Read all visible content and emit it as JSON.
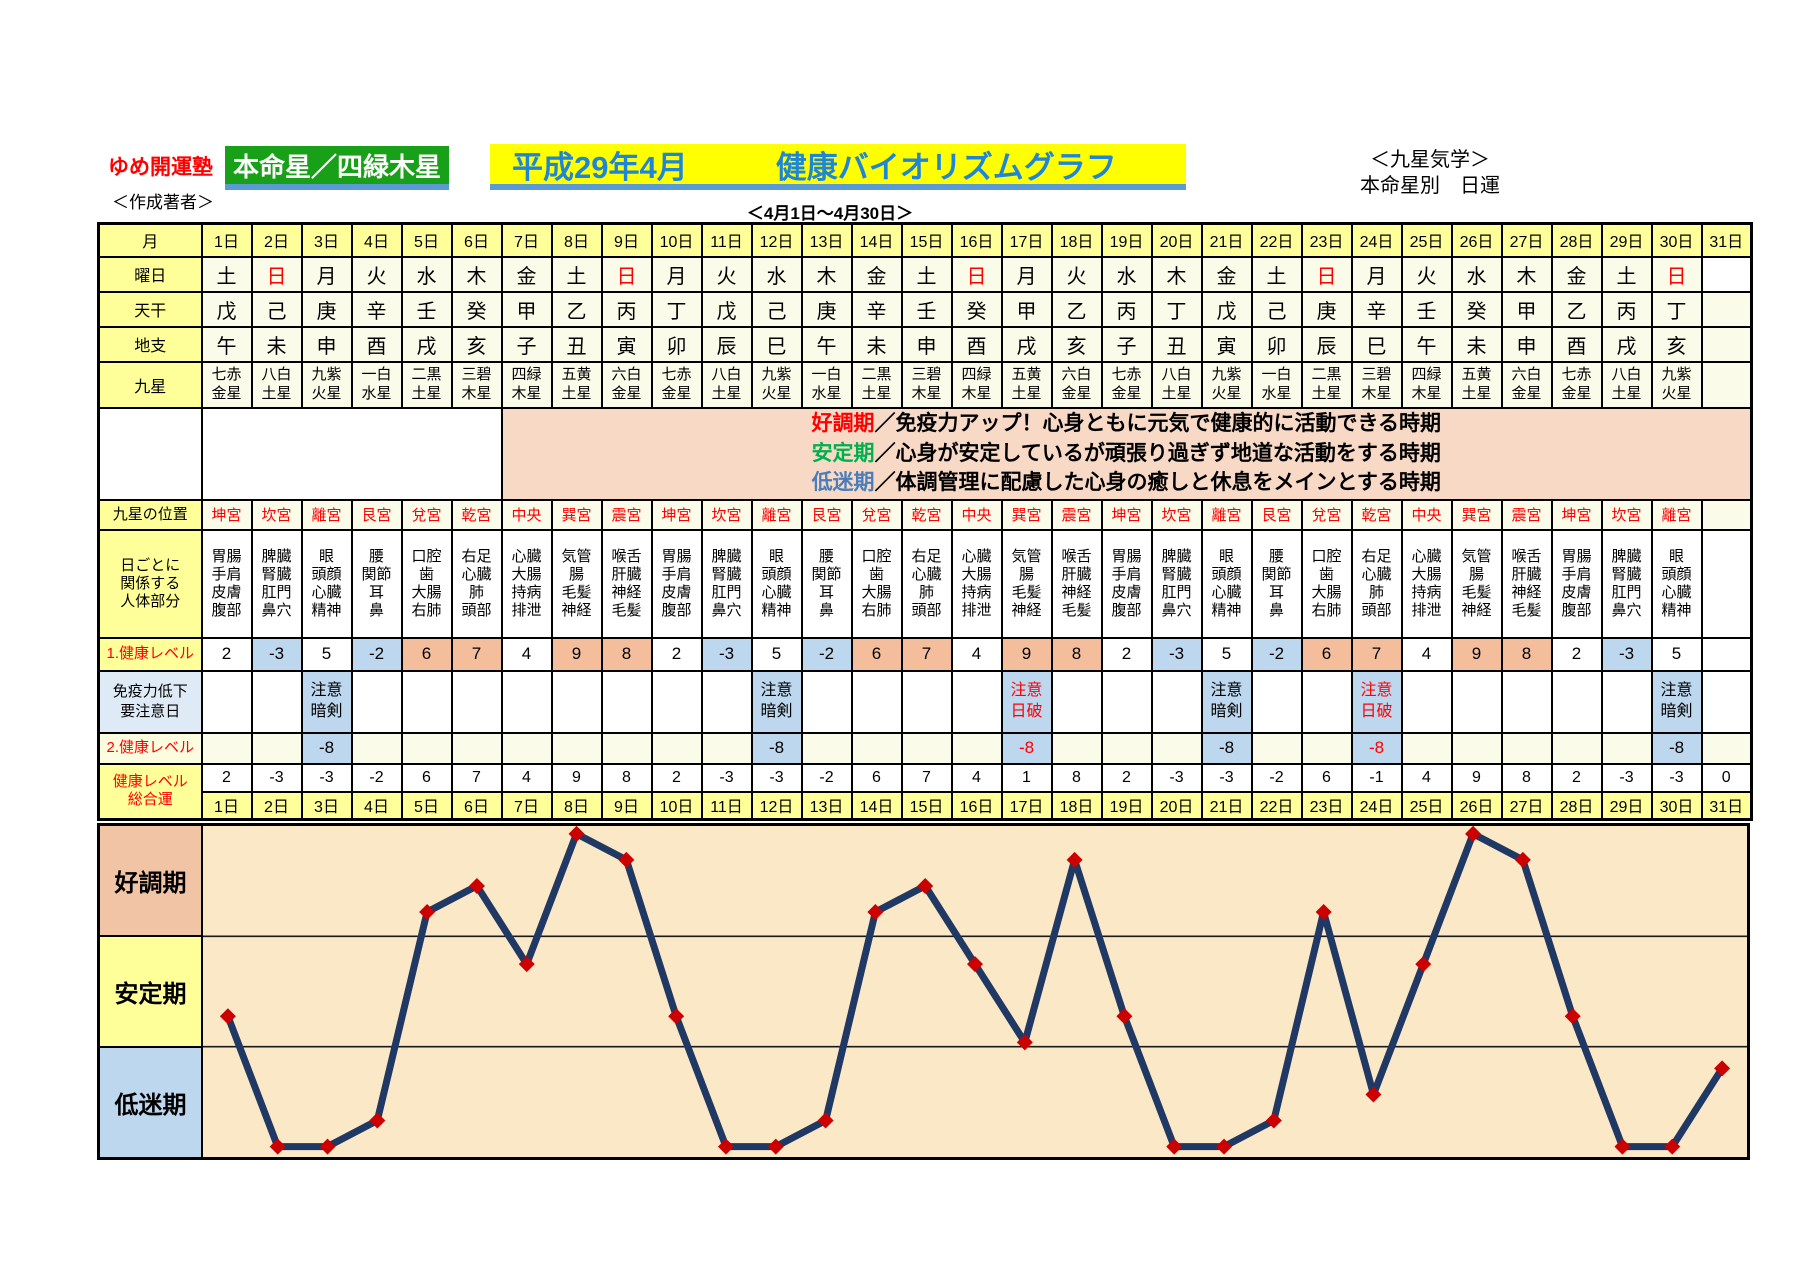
{
  "header": {
    "brand": "ゆめ開運塾",
    "author_label": "＜作成著者＞",
    "honmei": "本命星／四緑木星",
    "title_date": "平成29年4月",
    "title_main": "健康バイオリズムグラフ",
    "school_note": "＜九星気学＞",
    "fortune_note": "本命星別　日運",
    "period": "＜4月1日～4月30日＞"
  },
  "colors": {
    "title_text": "#1E86D8",
    "honmei_bg": "#18A018",
    "underline_blue": "#5B9BD5",
    "header_yellow": "#FFFF99",
    "cell_ivory": "#FBFBE9",
    "caution_blue": "#BDD7EE",
    "good_salmon": "#F4BE9D",
    "legend_pink": "#F8D9C6",
    "plot_bg": "#FBE8C7",
    "alert_red": "#FF0000"
  },
  "table": {
    "row_labels": {
      "month": "月",
      "weekday": "曜日",
      "tenkan": "天干",
      "chishi": "地支",
      "kyusei": "九星",
      "kyusei_position": "九星の位置",
      "body_parts": "日ごとに\n関係する\n人体部分",
      "level1": "1.健康レベル",
      "immune": "免疫力低下\n要注意日",
      "level2": "2.健康レベル",
      "total": "健康レベル\n総合運"
    },
    "days": [
      "1日",
      "2日",
      "3日",
      "4日",
      "5日",
      "6日",
      "7日",
      "8日",
      "9日",
      "10日",
      "11日",
      "12日",
      "13日",
      "14日",
      "15日",
      "16日",
      "17日",
      "18日",
      "19日",
      "20日",
      "21日",
      "22日",
      "23日",
      "24日",
      "25日",
      "26日",
      "27日",
      "28日",
      "29日",
      "30日",
      "31日"
    ],
    "weekdays": [
      "土",
      "日",
      "月",
      "火",
      "水",
      "木",
      "金",
      "土",
      "日",
      "月",
      "火",
      "水",
      "木",
      "金",
      "土",
      "日",
      "月",
      "火",
      "水",
      "木",
      "金",
      "土",
      "日",
      "月",
      "火",
      "水",
      "木",
      "金",
      "土",
      "日"
    ],
    "sundays": [
      2,
      9,
      16,
      23,
      30
    ],
    "tenkan": [
      "戊",
      "己",
      "庚",
      "辛",
      "壬",
      "癸",
      "甲",
      "乙",
      "丙",
      "丁",
      "戊",
      "己",
      "庚",
      "辛",
      "壬",
      "癸",
      "甲",
      "乙",
      "丙",
      "丁",
      "戊",
      "己",
      "庚",
      "辛",
      "壬",
      "癸",
      "甲",
      "乙",
      "丙",
      "丁"
    ],
    "chishi": [
      "午",
      "未",
      "申",
      "酉",
      "戌",
      "亥",
      "子",
      "丑",
      "寅",
      "卯",
      "辰",
      "巳",
      "午",
      "未",
      "申",
      "酉",
      "戌",
      "亥",
      "子",
      "丑",
      "寅",
      "卯",
      "辰",
      "巳",
      "午",
      "未",
      "申",
      "酉",
      "戌",
      "亥"
    ],
    "kyusei": [
      "七赤\n金星",
      "八白\n土星",
      "九紫\n火星",
      "一白\n水星",
      "二黒\n土星",
      "三碧\n木星",
      "四緑\n木星",
      "五黄\n土星",
      "六白\n金星",
      "七赤\n金星",
      "八白\n土星",
      "九紫\n火星",
      "一白\n水星",
      "二黒\n土星",
      "三碧\n木星",
      "四緑\n木星",
      "五黄\n土星",
      "六白\n金星",
      "七赤\n金星",
      "八白\n土星",
      "九紫\n火星",
      "一白\n水星",
      "二黒\n土星",
      "三碧\n木星",
      "四緑\n木星",
      "五黄\n土星",
      "六白\n金星",
      "七赤\n金星",
      "八白\n土星",
      "九紫\n火星"
    ],
    "legend": [
      {
        "term": "好調期",
        "color": "#FF0000",
        "text": "／免疫力アップ！心身ともに元気で健康的に活動できる時期"
      },
      {
        "term": "安定期",
        "color": "#00B050",
        "text": "／心身が安定しているが頑張り過ぎず地道な活動をする時期"
      },
      {
        "term": "低迷期",
        "color": "#4A7EBB",
        "text": "／体調管理に配慮した心身の癒しと休息をメインとする時期"
      }
    ],
    "kyusei_position": [
      "坤宮",
      "坎宮",
      "離宮",
      "艮宮",
      "兌宮",
      "乾宮",
      "中央",
      "巽宮",
      "震宮",
      "坤宮",
      "坎宮",
      "離宮",
      "艮宮",
      "兌宮",
      "乾宮",
      "中央",
      "巽宮",
      "震宮",
      "坤宮",
      "坎宮",
      "離宮",
      "艮宮",
      "兌宮",
      "乾宮",
      "中央",
      "巽宮",
      "震宮",
      "坤宮",
      "坎宮",
      "離宮"
    ],
    "body_parts": [
      "胃腸\n手肩\n皮膚\n腹部",
      "脾臓\n腎臓\n肛門\n鼻穴",
      "眼\n頭顔\n心臓\n精神",
      "腰\n関節\n耳\n鼻",
      "口腔\n歯\n大腸\n右肺",
      "右足\n心臓\n肺\n頭部",
      "心臓\n大腸\n持病\n排泄",
      "気管\n腸\n毛髪\n神経",
      "喉舌\n肝臓\n神経\n毛髪",
      "胃腸\n手肩\n皮膚\n腹部",
      "脾臓\n腎臓\n肛門\n鼻穴",
      "眼\n頭顔\n心臓\n精神",
      "腰\n関節\n耳\n鼻",
      "口腔\n歯\n大腸\n右肺",
      "右足\n心臓\n肺\n頭部",
      "心臓\n大腸\n持病\n排泄",
      "気管\n腸\n毛髪\n神経",
      "喉舌\n肝臓\n神経\n毛髪",
      "胃腸\n手肩\n皮膚\n腹部",
      "脾臓\n腎臓\n肛門\n鼻穴",
      "眼\n頭顔\n心臓\n精神",
      "腰\n関節\n耳\n鼻",
      "口腔\n歯\n大腸\n右肺",
      "右足\n心臓\n肺\n頭部",
      "心臓\n大腸\n持病\n排泄",
      "気管\n腸\n毛髪\n神経",
      "喉舌\n肝臓\n神経\n毛髪",
      "胃腸\n手肩\n皮膚\n腹部",
      "脾臓\n腎臓\n肛門\n鼻穴",
      "眼\n頭顔\n心臓\n精神"
    ],
    "level1": [
      2,
      -3,
      5,
      -2,
      6,
      7,
      4,
      9,
      8,
      2,
      -3,
      5,
      -2,
      6,
      7,
      4,
      9,
      8,
      2,
      -3,
      5,
      -2,
      6,
      7,
      4,
      9,
      8,
      2,
      -3,
      5
    ],
    "immune": {
      "3": {
        "text": "注意\n暗剣",
        "variant": "normal"
      },
      "12": {
        "text": "注意\n暗剣",
        "variant": "normal"
      },
      "17": {
        "text": "注意\n日破",
        "variant": "alert"
      },
      "21": {
        "text": "注意\n暗剣",
        "variant": "normal"
      },
      "24": {
        "text": "注意\n日破",
        "variant": "alert"
      },
      "30": {
        "text": "注意\n暗剣",
        "variant": "normal"
      }
    },
    "level2": {
      "3": {
        "value": "-8",
        "variant": "normal"
      },
      "12": {
        "value": "-8",
        "variant": "normal"
      },
      "17": {
        "value": "-8",
        "variant": "alert"
      },
      "21": {
        "value": "-8",
        "variant": "normal"
      },
      "24": {
        "value": "-8",
        "variant": "alert"
      },
      "30": {
        "value": "-8",
        "variant": "normal"
      }
    }
  },
  "graph": {
    "zones": [
      {
        "label": "好調期",
        "color": "#F2C4A6"
      },
      {
        "label": "安定期",
        "color": "#FFFF99"
      },
      {
        "label": "低迷期",
        "color": "#BDD7EE"
      }
    ]
  },
  "chart_data": {
    "type": "line",
    "title": "平成29年4月 健康バイオリズムグラフ",
    "x_labels": [
      "1日",
      "2日",
      "3日",
      "4日",
      "5日",
      "6日",
      "7日",
      "8日",
      "9日",
      "10日",
      "11日",
      "12日",
      "13日",
      "14日",
      "15日",
      "16日",
      "17日",
      "18日",
      "19日",
      "20日",
      "21日",
      "22日",
      "23日",
      "24日",
      "25日",
      "26日",
      "27日",
      "28日",
      "29日",
      "30日",
      "31日"
    ],
    "series": [
      {
        "name": "健康レベル総合運",
        "values": [
          2,
          -3,
          -3,
          -2,
          6,
          7,
          4,
          9,
          8,
          2,
          -3,
          -3,
          -2,
          6,
          7,
          4,
          1,
          8,
          2,
          -3,
          -3,
          -2,
          6,
          -1,
          4,
          9,
          8,
          2,
          -3,
          -3,
          0
        ]
      }
    ],
    "ylim": [
      -3.4,
      9.3
    ],
    "zone_bands": [
      {
        "label": "好調期",
        "approx_value_range": [
          5,
          9.3
        ]
      },
      {
        "label": "安定期",
        "approx_value_range": [
          1,
          5
        ]
      },
      {
        "label": "低迷期",
        "approx_value_range": [
          -3.4,
          1
        ]
      }
    ],
    "line_color": "#1F3864",
    "marker": "diamond",
    "marker_color": "#CC0000",
    "grid": "horizontal zone boundaries only",
    "legend_position": "left zone labels"
  }
}
